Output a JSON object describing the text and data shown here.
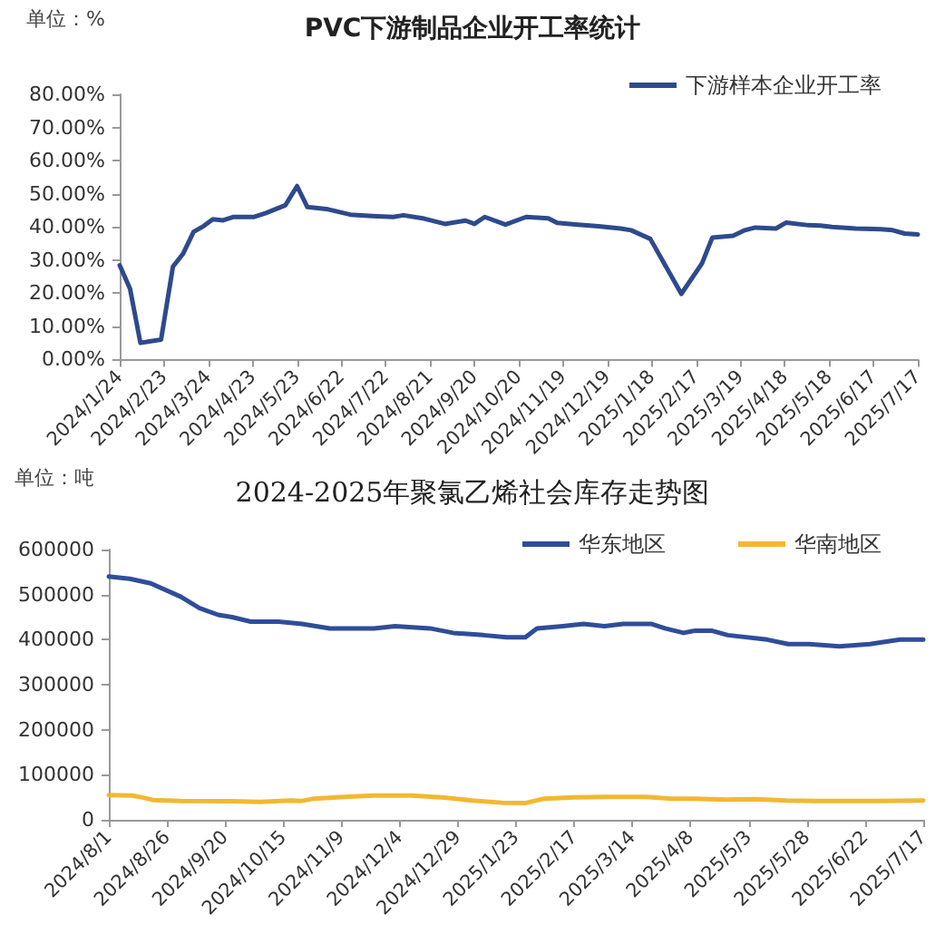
{
  "chart_data": [
    {
      "type": "line",
      "title": "PVC下游制品企业开工率统计",
      "ylabel": "单位：%",
      "legend": "top right",
      "grid": false,
      "x": [
        "2024-01-24",
        "2024-01-31",
        "2024-02-07",
        "2024-02-14",
        "2024-02-21",
        "2024-02-29",
        "2024-03-07",
        "2024-03-14",
        "2024-03-21",
        "2024-03-27",
        "2024-04-03",
        "2024-04-10",
        "2024-04-24",
        "2024-05-02",
        "2024-05-15",
        "2024-05-23",
        "2024-05-30",
        "2024-06-13",
        "2024-06-28",
        "2024-07-13",
        "2024-07-27",
        "2024-08-03",
        "2024-08-17",
        "2024-08-31",
        "2024-09-14",
        "2024-09-20",
        "2024-09-27",
        "2024-10-11",
        "2024-10-25",
        "2024-11-09",
        "2024-11-15",
        "2024-11-29",
        "2024-12-13",
        "2024-12-28",
        "2025-01-04",
        "2025-01-17",
        "2025-02-07",
        "2025-02-21",
        "2025-02-28",
        "2025-03-14",
        "2025-03-22",
        "2025-03-29",
        "2025-04-12",
        "2025-04-19",
        "2025-05-04",
        "2025-05-12",
        "2025-05-20",
        "2025-06-05",
        "2025-06-22",
        "2025-06-30",
        "2025-07-08",
        "2025-07-17"
      ],
      "series": [
        {
          "name": "下游样本企业开工率",
          "color": "#2e4a8d",
          "values": [
            28.4,
            21.3,
            5.0,
            5.5,
            6.0,
            28.0,
            32.0,
            38.5,
            40.3,
            42.3,
            42.0,
            43.0,
            43.0,
            44.2,
            46.5,
            52.3,
            46.0,
            45.3,
            43.7,
            43.3,
            43.0,
            43.5,
            42.5,
            40.9,
            41.9,
            40.9,
            43.0,
            40.7,
            43.0,
            42.6,
            41.2,
            40.7,
            40.2,
            39.5,
            39.0,
            36.4,
            19.8,
            29.0,
            36.8,
            37.3,
            39.0,
            39.8,
            39.5,
            41.3,
            40.5,
            40.4,
            40.0,
            39.5,
            39.3,
            39.0,
            38.0,
            37.7
          ]
        }
      ],
      "xlim": [
        "2024-01-24",
        "2025-07-17"
      ],
      "xticks": [
        {
          "value": "2024-01-24",
          "label": "2024/1/24"
        },
        {
          "value": "2024-02-23",
          "label": "2024/2/23"
        },
        {
          "value": "2024-03-24",
          "label": "2024/3/24"
        },
        {
          "value": "2024-04-23",
          "label": "2024/4/23"
        },
        {
          "value": "2024-05-23",
          "label": "2024/5/23"
        },
        {
          "value": "2024-06-22",
          "label": "2024/6/22"
        },
        {
          "value": "2024-07-22",
          "label": "2024/7/22"
        },
        {
          "value": "2024-08-21",
          "label": "2024/8/21"
        },
        {
          "value": "2024-09-20",
          "label": "2024/9/20"
        },
        {
          "value": "2024-10-20",
          "label": "2024/10/20"
        },
        {
          "value": "2024-11-19",
          "label": "2024/11/19"
        },
        {
          "value": "2024-12-19",
          "label": "2024/12/19"
        },
        {
          "value": "2025-01-18",
          "label": "2025/1/18"
        },
        {
          "value": "2025-02-17",
          "label": "2025/2/17"
        },
        {
          "value": "2025-03-19",
          "label": "2025/3/19"
        },
        {
          "value": "2025-04-18",
          "label": "2025/4/18"
        },
        {
          "value": "2025-05-18",
          "label": "2025/5/18"
        },
        {
          "value": "2025-06-17",
          "label": "2025/6/17"
        },
        {
          "value": "2025-07-17",
          "label": "2025/7/17"
        }
      ],
      "ylim": [
        0,
        80
      ],
      "yticks": [
        {
          "value": 0,
          "label": "0.00%"
        },
        {
          "value": 10,
          "label": "10.00%"
        },
        {
          "value": 20,
          "label": "20.00%"
        },
        {
          "value": 30,
          "label": "30.00%"
        },
        {
          "value": 40,
          "label": "40.00%"
        },
        {
          "value": 50,
          "label": "50.00%"
        },
        {
          "value": 60,
          "label": "60.00%"
        },
        {
          "value": 70,
          "label": "70.00%"
        },
        {
          "value": 80,
          "label": "80.00%"
        }
      ]
    },
    {
      "type": "line",
      "title": "2024-2025年聚氯乙烯社会库存走势图",
      "ylabel": "单位：吨",
      "legend": "top right",
      "grid": false,
      "series": [
        {
          "name": "华东地区",
          "color": "#2f4d99",
          "x": [
            "2024-08-01",
            "2024-08-10",
            "2024-08-19",
            "2024-09-01",
            "2024-09-09",
            "2024-09-17",
            "2024-09-23",
            "2024-10-01",
            "2024-10-13",
            "2024-10-23",
            "2024-11-04",
            "2024-11-13",
            "2024-11-23",
            "2024-12-02",
            "2024-12-17",
            "2024-12-27",
            "2025-01-09",
            "2025-01-19",
            "2025-01-27",
            "2025-02-01",
            "2025-02-12",
            "2025-02-21",
            "2025-03-02",
            "2025-03-10",
            "2025-03-22",
            "2025-03-28",
            "2025-04-05",
            "2025-04-10",
            "2025-04-17",
            "2025-04-24",
            "2025-05-11",
            "2025-05-20",
            "2025-05-29",
            "2025-06-11",
            "2025-06-24",
            "2025-07-07",
            "2025-07-17"
          ],
          "values": [
            540000,
            535000,
            525000,
            495000,
            470000,
            455000,
            450000,
            440000,
            440000,
            435000,
            425000,
            425000,
            425000,
            430000,
            425000,
            415000,
            410000,
            405000,
            405000,
            425000,
            430000,
            435000,
            430000,
            435000,
            435000,
            425000,
            415000,
            420000,
            420000,
            410000,
            400000,
            390000,
            390000,
            385000,
            390000,
            400000,
            400000
          ]
        },
        {
          "name": "华南地区",
          "color": "#f2b830",
          "x": [
            "2024-08-01",
            "2024-08-11",
            "2024-08-15",
            "2024-08-20",
            "2024-09-01",
            "2024-09-27",
            "2024-10-05",
            "2024-10-18",
            "2024-10-23",
            "2024-10-28",
            "2024-11-10",
            "2024-11-23",
            "2024-12-09",
            "2024-12-22",
            "2025-01-04",
            "2025-01-17",
            "2025-01-27",
            "2025-02-04",
            "2025-02-17",
            "2025-03-02",
            "2025-03-20",
            "2025-03-31",
            "2025-04-10",
            "2025-04-23",
            "2025-05-06",
            "2025-05-19",
            "2025-06-01",
            "2025-06-27",
            "2025-07-17"
          ],
          "values": [
            55000,
            54000,
            50000,
            44000,
            42000,
            41000,
            40000,
            43000,
            42000,
            47000,
            51000,
            54000,
            54000,
            50000,
            43000,
            38000,
            37000,
            47000,
            50000,
            51000,
            51000,
            47000,
            47000,
            45000,
            46000,
            43000,
            42000,
            42000,
            43000
          ]
        }
      ],
      "xlim": [
        "2024-08-01",
        "2025-07-17"
      ],
      "xticks": [
        {
          "value": "2024-08-01",
          "label": "2024/8/1"
        },
        {
          "value": "2024-08-26",
          "label": "2024/8/26"
        },
        {
          "value": "2024-09-20",
          "label": "2024/9/20"
        },
        {
          "value": "2024-10-15",
          "label": "2024/10/15"
        },
        {
          "value": "2024-11-09",
          "label": "2024/11/9"
        },
        {
          "value": "2024-12-04",
          "label": "2024/12/4"
        },
        {
          "value": "2024-12-29",
          "label": "2024/12/29"
        },
        {
          "value": "2025-01-23",
          "label": "2025/1/23"
        },
        {
          "value": "2025-02-17",
          "label": "2025/2/17"
        },
        {
          "value": "2025-03-14",
          "label": "2025/3/14"
        },
        {
          "value": "2025-04-08",
          "label": "2025/4/8"
        },
        {
          "value": "2025-05-03",
          "label": "2025/5/3"
        },
        {
          "value": "2025-05-28",
          "label": "2025/5/28"
        },
        {
          "value": "2025-06-22",
          "label": "2025/6/22"
        },
        {
          "value": "2025-07-17",
          "label": "2025/7/17"
        }
      ],
      "ylim": [
        0,
        600000
      ],
      "yticks": [
        0,
        100000,
        200000,
        300000,
        400000,
        500000,
        600000
      ]
    }
  ]
}
